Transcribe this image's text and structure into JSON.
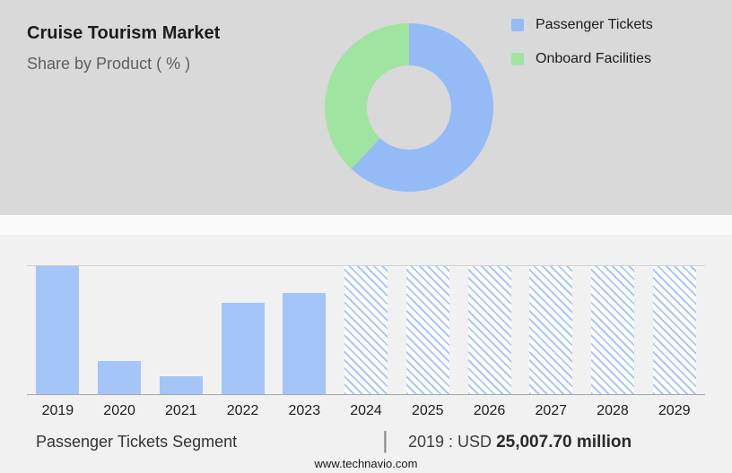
{
  "header": {
    "title": "Cruise Tourism Market",
    "subtitle": "Share by Product ( % )"
  },
  "chart_data": [
    {
      "type": "pie",
      "title": "Share by Product ( % )",
      "donut": true,
      "hole_ratio": 0.5,
      "labels": [
        "Passenger Tickets",
        "Onboard Facilities"
      ],
      "values": [
        62,
        38
      ],
      "colors": [
        "#94bbf6",
        "#a0e4a1"
      ],
      "legend_position": "top-right"
    },
    {
      "type": "bar",
      "categories": [
        "2019",
        "2020",
        "2021",
        "2022",
        "2023",
        "2024",
        "2025",
        "2026",
        "2027",
        "2028",
        "2029"
      ],
      "values": [
        100,
        26,
        14,
        71,
        79,
        100,
        100,
        100,
        100,
        100,
        100
      ],
      "values_note": "relative bar heights in % of tallest bar; chart shows no y-axis scale",
      "hatched": [
        false,
        false,
        false,
        false,
        false,
        true,
        true,
        true,
        true,
        true,
        true
      ],
      "bar_color": "#a5c4f7",
      "hatch_color": "#a9c7f8",
      "xlabel": "",
      "ylabel": "",
      "grid": false,
      "annotation": "2019 : USD 25,007.70 million"
    }
  ],
  "footer": {
    "segment_label": "Passenger Tickets Segment",
    "divider": "|",
    "stat_prefix": "2019 : USD",
    "stat_value": "25,007.70 million",
    "website": "www.technavio.com"
  }
}
